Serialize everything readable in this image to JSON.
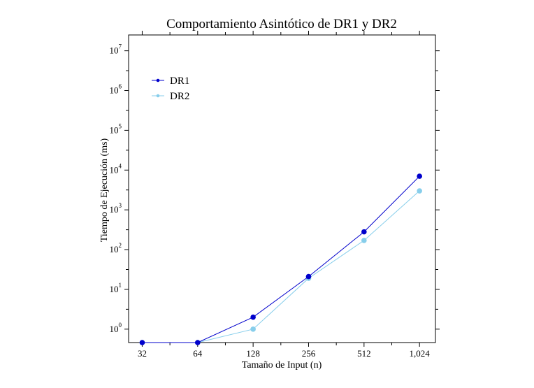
{
  "chart_data": {
    "type": "line",
    "title": "Comportamiento Asintótico de DR1 y DR2",
    "xlabel": "Tamaño de Input (n)",
    "ylabel": "Tiempo de Ejecución (ms)",
    "x_scale": "log2",
    "y_scale": "log10",
    "x_ticks": [
      32,
      64,
      128,
      256,
      512,
      1024
    ],
    "x_tick_labels": [
      "32",
      "64",
      "128",
      "256",
      "512",
      "1,024"
    ],
    "y_tick_labels": [
      {
        "base": "10",
        "exp": "0"
      },
      {
        "base": "10",
        "exp": "1"
      },
      {
        "base": "10",
        "exp": "2"
      },
      {
        "base": "10",
        "exp": "3"
      },
      {
        "base": "10",
        "exp": "4"
      },
      {
        "base": "10",
        "exp": "5"
      },
      {
        "base": "10",
        "exp": "6"
      },
      {
        "base": "10",
        "exp": "7"
      }
    ],
    "xlim": [
      27,
      1250
    ],
    "ylim": [
      0.46,
      25000000
    ],
    "legend_position": "top-left",
    "grid": false,
    "series": [
      {
        "name": "DR1",
        "color": "#0000cc",
        "x": [
          32,
          64,
          128,
          256,
          512,
          1024
        ],
        "y": [
          0.46,
          0.46,
          2.0,
          21,
          280,
          7000
        ]
      },
      {
        "name": "DR2",
        "color": "#87ceeb",
        "x": [
          32,
          64,
          128,
          256,
          512,
          1024
        ],
        "y": [
          0.46,
          0.46,
          1.0,
          19,
          170,
          3000
        ]
      }
    ]
  }
}
